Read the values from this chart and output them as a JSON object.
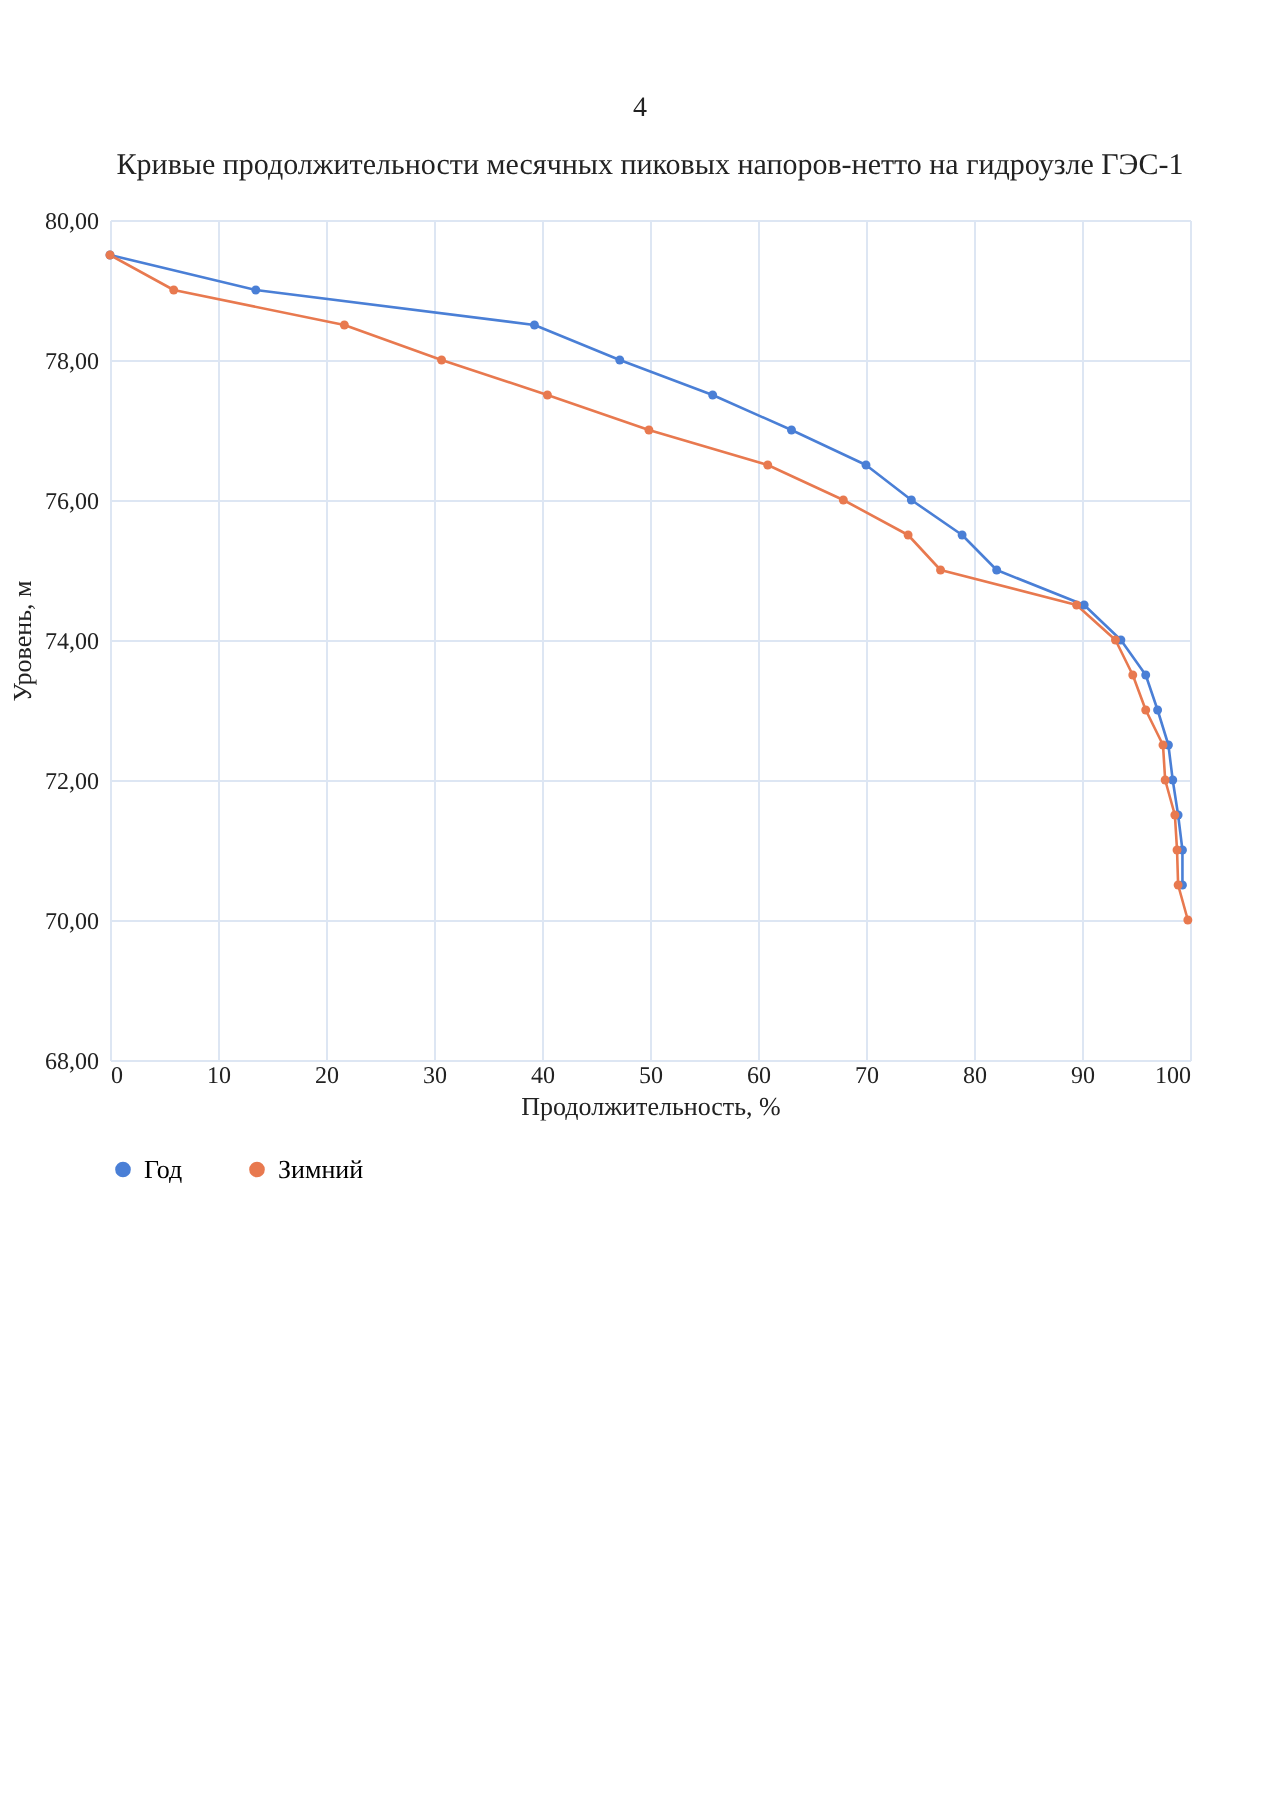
{
  "chart_data": {
    "type": "line",
    "title": "Кривые продолжительности месячных пиковых напоров-нетто на гидроузле ГЭС-1",
    "xlabel": "Продолжительность, %",
    "ylabel": "Уровень, м",
    "annotations": [
      "4"
    ],
    "xlim": [
      0,
      100
    ],
    "xticks": [
      0,
      10,
      20,
      30,
      40,
      50,
      60,
      70,
      80,
      90,
      100
    ],
    "ylim": [
      68,
      80
    ],
    "yticks": [
      {
        "value": 68,
        "label": "68,00"
      },
      {
        "value": 70,
        "label": "70,00"
      },
      {
        "value": 72,
        "label": "72,00"
      },
      {
        "value": 74,
        "label": "74,00"
      },
      {
        "value": 76,
        "label": "76,00"
      },
      {
        "value": 78,
        "label": "78,00"
      },
      {
        "value": 80,
        "label": "80,00"
      }
    ],
    "grid": true,
    "legend": "bottom",
    "marker": "circle",
    "line_style": "solid",
    "series": [
      {
        "name": "Год",
        "color": "#4a7fd6",
        "x": [
          0,
          13.5,
          39.3,
          47.2,
          55.8,
          63.1,
          70.0,
          74.2,
          78.9,
          82.1,
          90.2,
          93.6,
          95.9,
          97.0,
          98.0,
          98.4,
          98.9,
          99.3,
          99.3
        ],
        "values": [
          79.5,
          79.0,
          78.5,
          78.0,
          77.5,
          77.0,
          76.5,
          76.0,
          75.5,
          75.0,
          74.5,
          74.0,
          73.5,
          73.0,
          72.5,
          72.0,
          71.5,
          71.0,
          70.5
        ]
      },
      {
        "name": "Зимний",
        "color": "#e8794f",
        "x": [
          0,
          5.9,
          21.7,
          30.7,
          40.5,
          49.9,
          60.9,
          67.9,
          73.9,
          76.9,
          89.5,
          93.1,
          94.7,
          95.9,
          97.5,
          97.7,
          98.6,
          98.8,
          98.9,
          99.8
        ],
        "values": [
          79.5,
          79.0,
          78.5,
          78.0,
          77.5,
          77.0,
          76.5,
          76.0,
          75.5,
          75.0,
          74.5,
          74.0,
          73.5,
          73.0,
          72.5,
          72.0,
          71.5,
          71.0,
          70.5,
          70.0
        ]
      }
    ]
  }
}
